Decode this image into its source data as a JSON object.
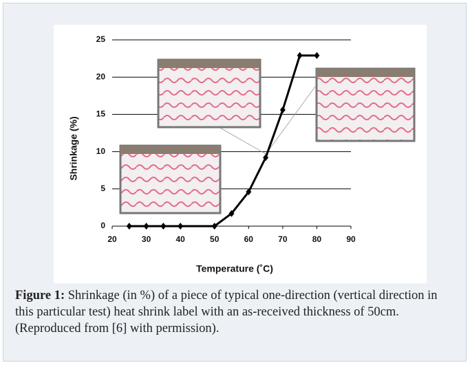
{
  "chart_data": {
    "type": "line",
    "x": [
      25,
      30,
      35,
      40,
      50,
      55,
      60,
      65,
      70,
      75,
      80
    ],
    "values": [
      0,
      0,
      0,
      0,
      0,
      1.7,
      4.6,
      9.2,
      15.6,
      22.9,
      22.9
    ],
    "color": "#000000",
    "xlabel": "Temperature (˚C)",
    "ylabel": "Shrinkage (%)",
    "xlim": [
      20,
      90
    ],
    "xticks": [
      20,
      30,
      40,
      50,
      60,
      70,
      80,
      90
    ],
    "ylim": [
      0,
      25
    ],
    "yticks": [
      0,
      5,
      10,
      15,
      20,
      25
    ],
    "grid": true
  },
  "caption": {
    "label": "Figure 1:",
    "text": "Shrinkage (in %) of a piece of typical one-direction (vertical direction in this particular test) heat shrink label with an as-received thickness of 50cm. (Reproduced from [6] with permission)."
  }
}
